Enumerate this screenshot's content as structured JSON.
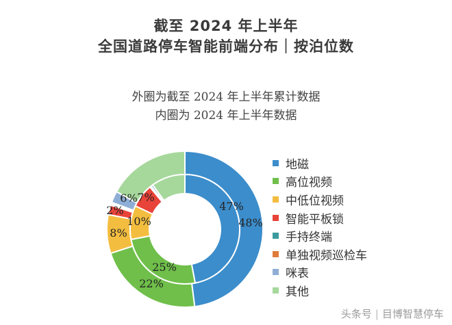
{
  "header": {
    "title_line1": "截至 2024 年上半年",
    "title_line2": "全国道路停车智能前端分布｜按泊位数",
    "subtitle_line1": "外圈为截至 2024 年上半年累计数据",
    "subtitle_line2": "内圈为 2024 年上半年数据"
  },
  "watermark": {
    "platform": "头条号",
    "author": "目博智慧停车"
  },
  "chart_data": {
    "type": "pie",
    "variant": "nested-donut",
    "title": "截至 2024 年上半年 全国道路停车智能前端分布｜按泊位数",
    "subtitle": "外圈为截至 2024 年上半年累计数据 / 内圈为 2024 年上半年数据",
    "legend_position": "right",
    "categories": [
      "地磁",
      "高位视频",
      "中低位视频",
      "智能平板锁",
      "手持终端",
      "单独视频巡检车",
      "咪表",
      "其他"
    ],
    "colors": [
      "#3c8dcb",
      "#6fbf4a",
      "#f3bd3f",
      "#e8443a",
      "#3d9a9c",
      "#e07b39",
      "#8eaed6",
      "#a6d89b"
    ],
    "series": [
      {
        "name": "外圈",
        "values": [
          48,
          22,
          8,
          2,
          0.3,
          0.3,
          2.4,
          17
        ],
        "labels": [
          "48%",
          "22%",
          "8%",
          "2%",
          "",
          "",
          "",
          ""
        ]
      },
      {
        "name": "内圈",
        "values": [
          47,
          25,
          10,
          7,
          0.2,
          0.2,
          0.6,
          10
        ],
        "labels": [
          "47%",
          "25%",
          "10%",
          "7%",
          "",
          "",
          "",
          ""
        ]
      }
    ],
    "extra_labels": [
      "6%"
    ]
  }
}
